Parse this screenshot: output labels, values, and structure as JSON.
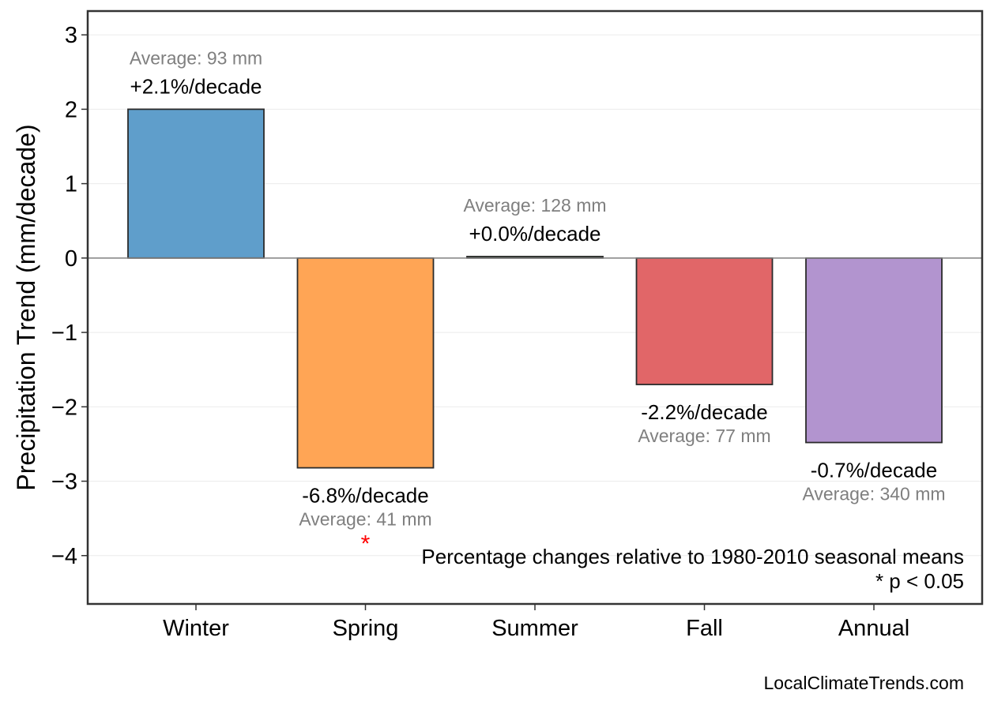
{
  "chart_data": {
    "type": "bar",
    "categories": [
      "Winter",
      "Spring",
      "Summer",
      "Fall",
      "Annual"
    ],
    "values": [
      2.0,
      -2.82,
      0.02,
      -1.7,
      -2.48
    ],
    "pct_labels": [
      "+2.1%/decade",
      "-6.8%/decade",
      "+0.0%/decade",
      "-2.2%/decade",
      "-0.7%/decade"
    ],
    "avg_labels": [
      "Average: 93 mm",
      "Average: 41 mm",
      "Average: 128 mm",
      "Average: 77 mm",
      "Average: 340 mm"
    ],
    "significant": [
      false,
      true,
      false,
      false,
      false
    ],
    "colors": [
      "#5f9ecb",
      "#ffa555",
      "#6fb86f",
      "#e16668",
      "#b294cf"
    ],
    "ylabel": "Precipitation Trend (mm/decade)",
    "ylim": [
      -4.65,
      3.32
    ],
    "yticks": [
      3,
      2,
      1,
      0,
      -1,
      -2,
      -3,
      -4
    ],
    "ytick_labels": [
      "3",
      "2",
      "1",
      "0",
      "−1",
      "−2",
      "−3",
      "−4"
    ],
    "grid": true,
    "significance_marker": "*"
  },
  "notes": {
    "line1": "Percentage changes relative to 1980-2010 seasonal means",
    "line2": "* p < 0.05"
  },
  "footer": "LocalClimateTrends.com"
}
